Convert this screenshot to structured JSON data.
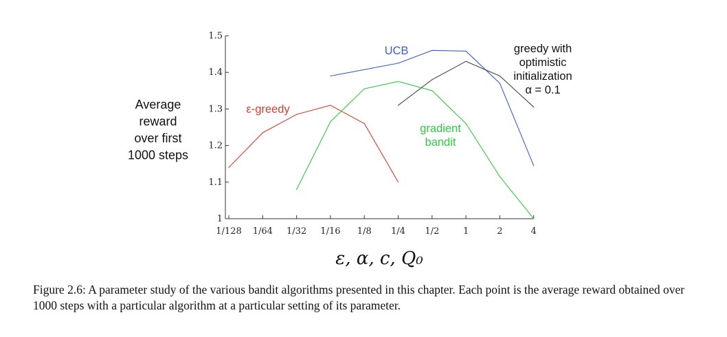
{
  "chart_data": {
    "type": "line",
    "categories": [
      "1/128",
      "1/64",
      "1/32",
      "1/16",
      "1/8",
      "1/4",
      "1/2",
      "1",
      "2",
      "4"
    ],
    "yticks": [
      "1",
      "1.1",
      "1.2",
      "1.3",
      "1.4",
      "1.5"
    ],
    "ylim": [
      1.0,
      1.5
    ],
    "ylabel_lines": [
      "Average",
      "reward",
      "over first",
      "1000 steps"
    ],
    "xlabel": "ε, α, c, Q₀",
    "grid": false,
    "series": [
      {
        "name": "ε-greedy",
        "color": "#e03c31",
        "label_lines": [
          "ε-greedy"
        ],
        "points": [
          {
            "x": "1/128",
            "y": 1.14
          },
          {
            "x": "1/64",
            "y": 1.235
          },
          {
            "x": "1/32",
            "y": 1.285
          },
          {
            "x": "1/16",
            "y": 1.31
          },
          {
            "x": "1/8",
            "y": 1.26
          },
          {
            "x": "1/4",
            "y": 1.1
          }
        ]
      },
      {
        "name": "UCB",
        "color": "#3b5bdb",
        "label_lines": [
          "UCB"
        ],
        "points": [
          {
            "x": "1/16",
            "y": 1.39
          },
          {
            "x": "1/4",
            "y": 1.425
          },
          {
            "x": "1/2",
            "y": 1.46
          },
          {
            "x": "1",
            "y": 1.458
          },
          {
            "x": "2",
            "y": 1.37
          },
          {
            "x": "4",
            "y": 1.145
          }
        ]
      },
      {
        "name": "gradient bandit",
        "color": "#2ecc40",
        "label_lines": [
          "gradient",
          "bandit"
        ],
        "points": [
          {
            "x": "1/32",
            "y": 1.08
          },
          {
            "x": "1/16",
            "y": 1.265
          },
          {
            "x": "1/8",
            "y": 1.355
          },
          {
            "x": "1/4",
            "y": 1.375
          },
          {
            "x": "1/2",
            "y": 1.35
          },
          {
            "x": "1",
            "y": 1.26
          },
          {
            "x": "2",
            "y": 1.115
          },
          {
            "x": "4",
            "y": 1.0
          }
        ]
      },
      {
        "name": "greedy with optimistic initialization α = 0.1",
        "color": "#444444",
        "label_lines": [
          "greedy with",
          "optimistic",
          "initialization",
          "α = 0.1"
        ],
        "points": [
          {
            "x": "1/4",
            "y": 1.31
          },
          {
            "x": "1/2",
            "y": 1.38
          },
          {
            "x": "1",
            "y": 1.43
          },
          {
            "x": "2",
            "y": 1.39
          },
          {
            "x": "4",
            "y": 1.305
          }
        ]
      }
    ]
  },
  "caption": "Figure 2.6: A parameter study of the various bandit algorithms presented in this chapter. Each point is the average reward obtained over 1000 steps with a particular algorithm at a particular setting of its parameter."
}
